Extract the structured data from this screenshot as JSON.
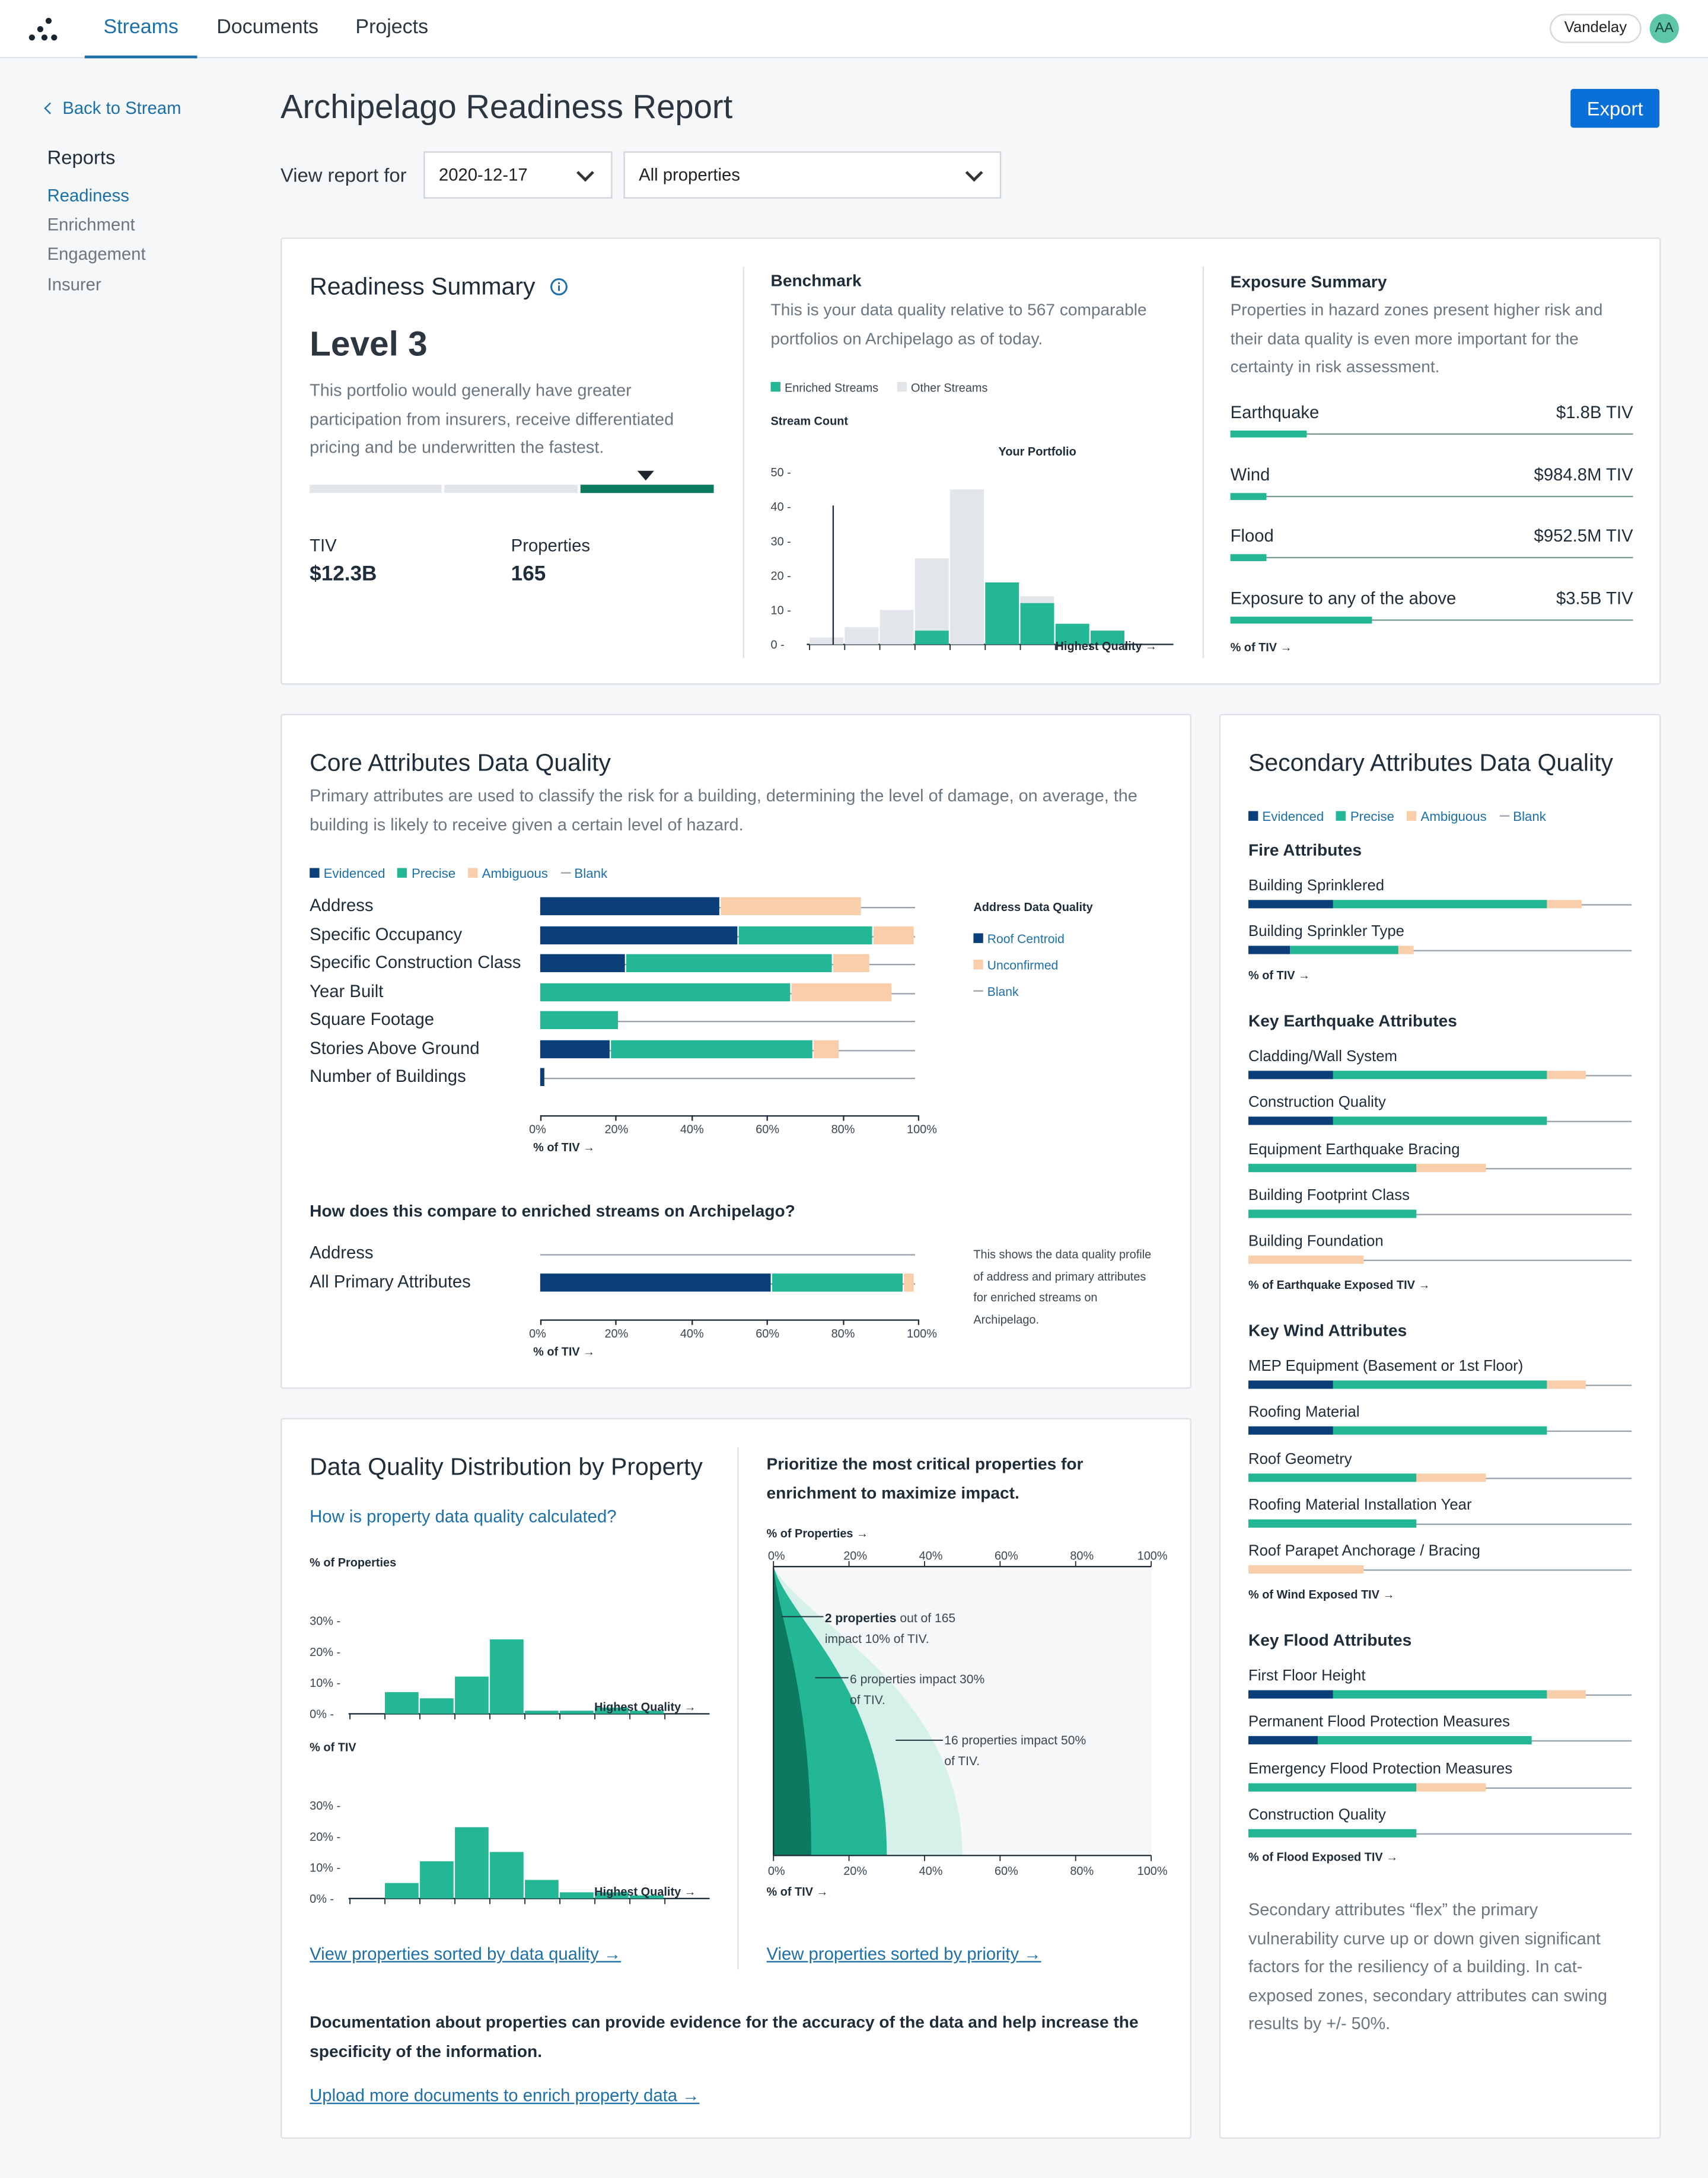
{
  "app": {
    "nav": [
      "Streams",
      "Documents",
      "Projects"
    ],
    "user": "Vandelay",
    "avatar": "AA"
  },
  "sidebar": {
    "back": "Back to Stream",
    "title": "Reports",
    "items": [
      "Readiness",
      "Enrichment",
      "Engagement",
      "Insurer"
    ]
  },
  "header": {
    "title": "Archipelago Readiness Report",
    "export": "Export",
    "view_label": "View report for",
    "date": "2020-12-17",
    "scope": "All properties"
  },
  "summary": {
    "title": "Readiness Summary",
    "level": "Level 3",
    "desc": "This portfolio would generally have greater participation from insurers, receive differentiated pricing and be underwritten the fastest.",
    "tiv_label": "TIV",
    "tiv": "$12.3B",
    "props_label": "Properties",
    "props": "165"
  },
  "benchmark": {
    "title": "Benchmark",
    "desc": "This is your data quality relative to 567 comparable portfolios on Archipelago as of today.",
    "legend": [
      "Enriched Streams",
      "Other Streams"
    ],
    "ylabel": "Stream Count",
    "marker": "Your Portfolio",
    "xlabel": "Highest Quality →",
    "yticks": [
      "50 -",
      "40 -",
      "30 -",
      "20 -",
      "10 -",
      "0 -"
    ]
  },
  "exposure": {
    "title": "Exposure Summary",
    "desc": "Properties in hazard zones present higher risk and their data quality is even more important for the certainty in risk assessment.",
    "foot": "% of TIV →",
    "rows": [
      {
        "label": "Earthquake",
        "value": "$1.8B TIV",
        "frac": 0.19
      },
      {
        "label": "Wind",
        "value": "$984.8M TIV",
        "frac": 0.09
      },
      {
        "label": "Flood",
        "value": "$952.5M TIV",
        "frac": 0.09
      },
      {
        "label": "Exposure to any of the above",
        "value": "$3.5B TIV",
        "frac": 0.35
      }
    ]
  },
  "core": {
    "title": "Core Attributes Data Quality",
    "desc": "Primary attributes are used to classify the risk for a building, determining the level of damage, on average, the building is likely to receive given a certain level of hazard.",
    "legend": [
      "Evidenced",
      "Precise",
      "Ambiguous",
      "Blank"
    ],
    "xticks": [
      "0%",
      "20%",
      "40%",
      "60%",
      "80%",
      "100%"
    ],
    "foot": "% of TIV →",
    "side_title": "Address Data Quality",
    "side_legend": [
      "Roof Centroid",
      "Unconfirmed",
      "Blank"
    ],
    "compare_title": "How does this compare to enriched streams on Archipelago?",
    "compare_note": "This shows the data quality profile of address and primary attributes for enriched streams on Archipelago.",
    "compare_rows": [
      {
        "label": "Address",
        "seg": [
          0,
          0,
          0,
          99.5
        ]
      },
      {
        "label": "All Primary Attributes",
        "seg": [
          62,
          35,
          3,
          0
        ]
      }
    ]
  },
  "distribution": {
    "title": "Data Quality Distribution by Property",
    "link": "How is property data quality calculated?",
    "label1": "% of Properties",
    "label2": "% of TIV",
    "xlabel": "Highest Quality →",
    "yticks": [
      "30% -",
      "20% -",
      "10% -",
      "0% -"
    ],
    "link2": "View properties sorted by data quality",
    "prioritize": "Prioritize the most critical properties for enrichment to maximize impact.",
    "ptop": "% of Properties →",
    "pbot": "% of TIV →",
    "pticks": [
      "0%",
      "20%",
      "40%",
      "60%",
      "80%",
      "100%"
    ],
    "ann1b": "2 properties",
    "ann1": "out of 165",
    "ann1c": "impact 10% of TIV.",
    "ann2": "6 properties impact 30%",
    "ann2b": "of TIV.",
    "ann3": "16 properties impact 50%",
    "ann3b": "of TIV.",
    "link3": "View properties sorted by priority",
    "doc": "Documentation about properties can provide evidence for the accuracy of the data and help increase the specificity of the information.",
    "link4": "Upload more documents to enrich property data"
  },
  "secondary": {
    "title": "Secondary Attributes Data Quality",
    "legend": [
      "Evidenced",
      "Precise",
      "Ambiguous",
      "Blank"
    ],
    "note": "Secondary attributes “flex” the primary vulnerability curve up or down given significant factors for the resiliency of a building. In cat-exposed zones, secondary attributes can swing results by +/- 50%."
  },
  "chart_data": [
    {
      "type": "bar",
      "title": "Benchmark",
      "ylabel": "Stream Count",
      "ylim": [
        0,
        50
      ],
      "categories": [
        "1",
        "2",
        "3",
        "4",
        "5",
        "6",
        "7",
        "8",
        "9",
        "10"
      ],
      "series": [
        {
          "name": "Enriched Streams",
          "values": [
            0,
            0,
            0,
            4,
            0,
            18,
            12,
            6,
            4,
            0
          ]
        },
        {
          "name": "Other Streams",
          "values": [
            2,
            5,
            10,
            25,
            45,
            18,
            14,
            6,
            4,
            0
          ]
        }
      ]
    },
    {
      "type": "bar",
      "title": "Core Attributes Data Quality",
      "xlabel": "% of TIV",
      "xlim": [
        0,
        100
      ],
      "categories": [
        "Address",
        "Specific Occupancy",
        "Specific Construction Class",
        "Year Built",
        "Square Footage",
        "Stories Above Ground",
        "Number of Buildings"
      ],
      "series": [
        {
          "name": "Evidenced",
          "values": [
            48,
            53,
            23,
            0,
            0,
            19,
            1.5
          ]
        },
        {
          "name": "Precise",
          "values": [
            0,
            36,
            55,
            67,
            21,
            54,
            0
          ]
        },
        {
          "name": "Ambiguous",
          "values": [
            38,
            11,
            10,
            27,
            0,
            7,
            0
          ]
        },
        {
          "name": "Blank",
          "values": [
            14,
            0,
            12,
            6,
            79,
            20,
            98.5
          ]
        }
      ]
    },
    {
      "type": "bar",
      "title": "% of Properties",
      "ylim": [
        0,
        30
      ],
      "categories": [
        "1",
        "2",
        "3",
        "4",
        "5",
        "6",
        "7",
        "8",
        "9",
        "10"
      ],
      "values": [
        0,
        7,
        5,
        12,
        24,
        1,
        1,
        2,
        1,
        0
      ]
    },
    {
      "type": "bar",
      "title": "% of TIV",
      "ylim": [
        0,
        30
      ],
      "categories": [
        "1",
        "2",
        "3",
        "4",
        "5",
        "6",
        "7",
        "8",
        "9",
        "10"
      ],
      "values": [
        0,
        5,
        12,
        23,
        15,
        6,
        2,
        2,
        1,
        0
      ]
    },
    {
      "type": "area",
      "xlabel": "% of TIV",
      "title": "Prioritize the most critical properties for enrichment to maximize impact.",
      "series": [
        {
          "name": "10%",
          "value": 10
        },
        {
          "name": "30%",
          "value": 30
        },
        {
          "name": "50%",
          "value": 50
        }
      ]
    },
    {
      "type": "bar",
      "title": "Secondary Attributes Data Quality",
      "groups": [
        {
          "name": "Fire Attributes",
          "foot": "% of TIV →",
          "rows": [
            {
              "label": "Building Sprinklered",
              "seg": [
                22,
                56,
                9,
                13
              ]
            },
            {
              "label": "Building Sprinkler Type",
              "seg": [
                11,
                28,
                4,
                57
              ]
            }
          ]
        },
        {
          "name": "Key Earthquake Attributes",
          "foot": "% of Earthquake Exposed TIV →",
          "rows": [
            {
              "label": "Cladding/Wall System",
              "seg": [
                22,
                56,
                10,
                12
              ]
            },
            {
              "label": "Construction Quality",
              "seg": [
                22,
                56,
                0,
                22
              ]
            },
            {
              "label": "Equipment Earthquake Bracing",
              "seg": [
                0,
                44,
                18,
                38
              ]
            },
            {
              "label": "Building Footprint Class",
              "seg": [
                0,
                44,
                0,
                56
              ]
            },
            {
              "label": "Building Foundation",
              "seg": [
                0,
                0,
                30,
                70
              ]
            }
          ]
        },
        {
          "name": "Key Wind Attributes",
          "foot": "% of Wind Exposed TIV →",
          "rows": [
            {
              "label": "MEP Equipment (Basement or 1st Floor)",
              "seg": [
                22,
                56,
                10,
                12
              ]
            },
            {
              "label": "Roofing Material",
              "seg": [
                22,
                56,
                0,
                22
              ]
            },
            {
              "label": "Roof Geometry",
              "seg": [
                0,
                44,
                18,
                38
              ]
            },
            {
              "label": "Roofing Material Installation Year",
              "seg": [
                0,
                44,
                0,
                56
              ]
            },
            {
              "label": "Roof Parapet Anchorage / Bracing",
              "seg": [
                0,
                0,
                30,
                70
              ]
            }
          ]
        },
        {
          "name": "Key Flood Attributes",
          "foot": "% of Flood Exposed TIV →",
          "rows": [
            {
              "label": "First Floor Height",
              "seg": [
                22,
                56,
                10,
                12
              ]
            },
            {
              "label": "Permanent Flood Protection Measures",
              "seg": [
                18,
                56,
                0,
                26
              ]
            },
            {
              "label": "Emergency Flood Protection Measures",
              "seg": [
                0,
                44,
                18,
                38
              ]
            },
            {
              "label": "Construction Quality",
              "seg": [
                0,
                44,
                0,
                56
              ]
            }
          ]
        }
      ]
    }
  ],
  "colors": {
    "evidenced": "#0B3F7A",
    "precise": "#23B795",
    "ambiguous": "#F8CFAA",
    "blank": "#9aa3ab",
    "dark_green": "#0B7A5F",
    "mint": "#D6F1E9",
    "other": "#E2E5EA",
    "accent": "#0A6FD6"
  }
}
